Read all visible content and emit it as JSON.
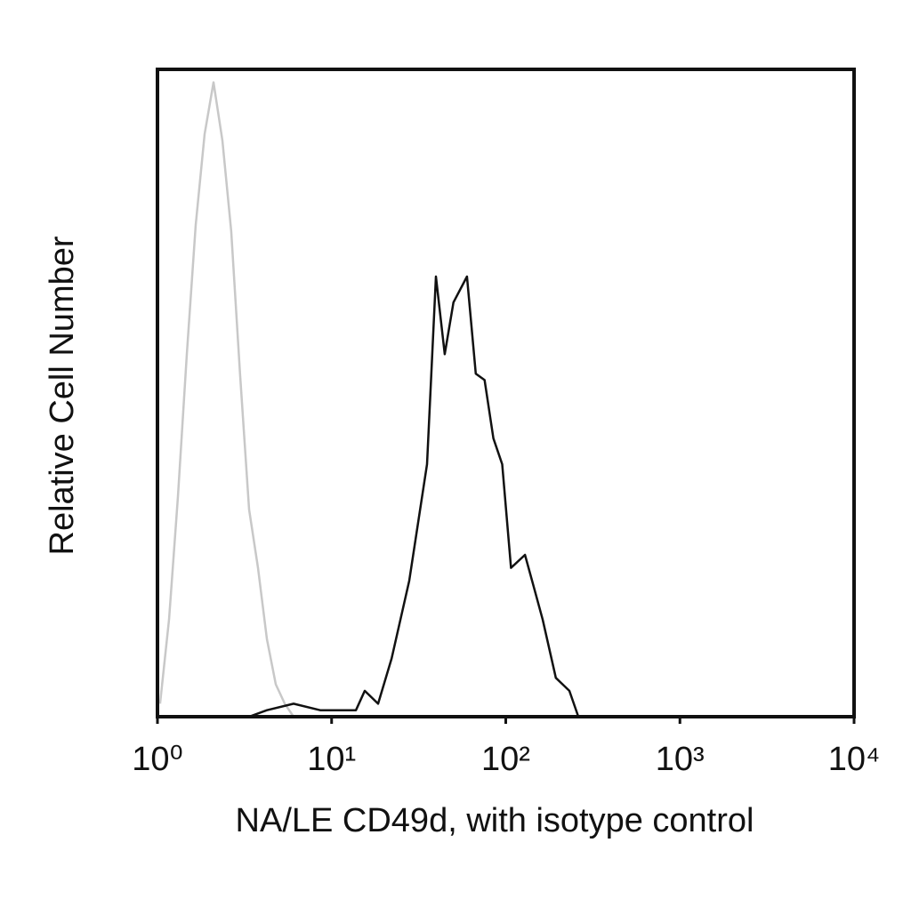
{
  "chart_data": {
    "type": "line",
    "xlabel": "NA/LE CD49d, with isotype control",
    "ylabel": "Relative Cell Number",
    "xscale": "log",
    "xlim": [
      1,
      10000
    ],
    "xticks": [
      {
        "value": 1,
        "label": "10⁰"
      },
      {
        "value": 10,
        "label": "10¹"
      },
      {
        "value": 100,
        "label": "10²"
      },
      {
        "value": 1000,
        "label": "10³"
      },
      {
        "value": 10000,
        "label": "10⁴"
      }
    ],
    "ylim": [
      0,
      100
    ],
    "series": [
      {
        "color": "#c8c8c8",
        "x": [
          1.035,
          1.165,
          1.31,
          1.474,
          1.658,
          1.866,
          2.099,
          2.36,
          2.65,
          2.98,
          3.36,
          3.78,
          4.25,
          4.78,
          5.38,
          6.05
        ],
        "values": [
          2,
          15,
          34,
          56,
          76,
          90,
          98,
          89,
          75,
          53,
          32,
          23,
          12,
          5,
          2,
          0
        ]
      },
      {
        "color": "#111111",
        "x": [
          3.36,
          4.25,
          6.05,
          8.6,
          13.8,
          15.5,
          18.5,
          22.1,
          27.9,
          35.3,
          39.7,
          44.6,
          50.1,
          59.9,
          67.3,
          75.6,
          84.9,
          95.4,
          107.2,
          129,
          145,
          163,
          194,
          232,
          261,
          468,
          3900
        ],
        "values": [
          0,
          1,
          2,
          1,
          1,
          4,
          2,
          9,
          21,
          39,
          68,
          56,
          64,
          68,
          53,
          52,
          43,
          39,
          23,
          25,
          20,
          15,
          6,
          4,
          0,
          0,
          0
        ]
      }
    ]
  }
}
